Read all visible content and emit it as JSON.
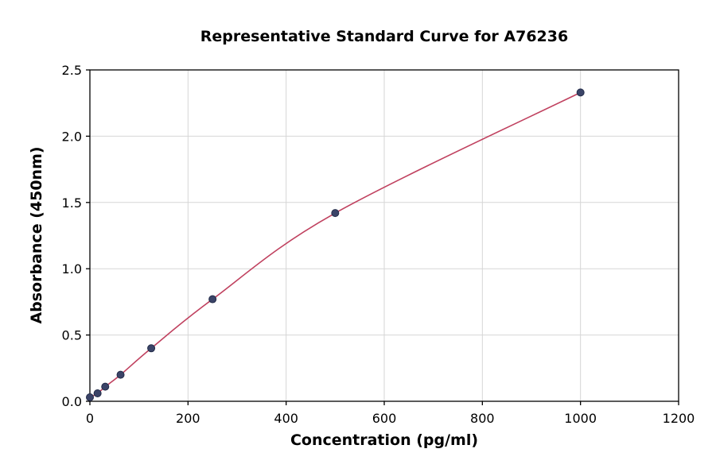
{
  "chart_data": {
    "type": "line",
    "title": "Representative Standard Curve for A76236",
    "xlabel": "Concentration (pg/ml)",
    "ylabel": "Absorbance (450nm)",
    "x": [
      0,
      15.6,
      31.25,
      62.5,
      125,
      250,
      500,
      1000
    ],
    "y": [
      0.03,
      0.06,
      0.11,
      0.2,
      0.4,
      0.77,
      1.42,
      2.33
    ],
    "xlim": [
      0,
      1200
    ],
    "ylim": [
      0,
      2.5
    ],
    "xticks": [
      0,
      200,
      400,
      600,
      800,
      1000,
      1200
    ],
    "xtick_labels": [
      "0",
      "200",
      "400",
      "600",
      "800",
      "1000",
      "1200"
    ],
    "yticks": [
      0,
      0.5,
      1,
      1.5,
      2,
      2.5
    ],
    "ytick_labels": [
      "0.0",
      "0.5",
      "1.0",
      "1.5",
      "2.0",
      "2.5"
    ],
    "grid": true,
    "legend": "none",
    "line_color": "#c0415f",
    "point_color": "#3b4468",
    "point_edge_color": "#232c49",
    "grid_color": "#d6d6d6",
    "axis_color": "#000000",
    "tick_font_size": 16,
    "background": "#ffffff"
  }
}
